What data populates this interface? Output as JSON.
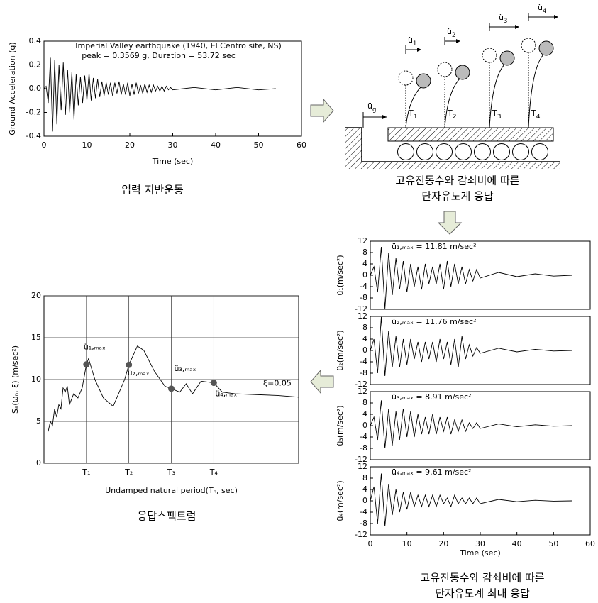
{
  "chart_data": [
    {
      "type": "line",
      "title": "Imperial Valley earthquake (1940, El Centro site, NS)",
      "subtitle": "peak = 0.3569 g, Duration = 53.72 sec",
      "x_label": "Time (sec)",
      "y_label": "Ground Acceleration (g)",
      "color": "#000000",
      "xlim": [
        0,
        60
      ],
      "xticks": [
        0,
        10,
        20,
        30,
        40,
        50,
        60
      ],
      "ylim": [
        -0.4,
        0.4
      ],
      "yticks": [
        -0.4,
        -0.2,
        {
          "value": 0,
          "label": "0.0"
        },
        0.2,
        0.4
      ],
      "x": [
        0,
        0.5,
        1,
        1.5,
        2,
        2.5,
        3,
        3.5,
        4,
        4.5,
        5,
        5.5,
        6,
        6.5,
        7,
        7.5,
        8,
        8.5,
        9,
        9.5,
        10,
        10.5,
        11,
        11.5,
        12,
        12.5,
        13,
        13.5,
        14,
        14.5,
        15,
        15.5,
        16,
        16.5,
        17,
        17.5,
        18,
        18.5,
        19,
        19.5,
        20,
        20.5,
        21,
        21.5,
        22,
        22.5,
        23,
        23.5,
        24,
        24.5,
        25,
        25.5,
        26,
        26.5,
        27,
        27.5,
        28,
        28.5,
        29,
        29.5,
        30,
        35,
        40,
        45,
        50,
        54
      ],
      "values": [
        0,
        0.02,
        -0.12,
        0.26,
        -0.36,
        0.24,
        -0.3,
        0.2,
        -0.18,
        0.22,
        -0.22,
        0.16,
        -0.2,
        0.14,
        -0.26,
        0.12,
        -0.14,
        0.1,
        -0.12,
        0.11,
        -0.1,
        0.13,
        -0.1,
        0.09,
        -0.08,
        0.08,
        -0.07,
        0.06,
        -0.06,
        0.05,
        -0.05,
        0.05,
        -0.06,
        0.05,
        -0.04,
        0.06,
        -0.05,
        0.04,
        -0.05,
        0.05,
        -0.06,
        0.04,
        -0.05,
        0.05,
        -0.04,
        0.03,
        -0.04,
        0.04,
        -0.03,
        0.03,
        -0.03,
        0.03,
        -0.02,
        0.02,
        -0.02,
        0.02,
        -0.02,
        0.02,
        -0.01,
        0.01,
        -0.01,
        0.01,
        -0.01,
        0.01,
        -0.01,
        0
      ]
    },
    {
      "type": "line",
      "x_label": "Undamped natural period(Tₙ, sec)",
      "y_label": "Sₐ(ωₙ, ξ) (m/sec²)",
      "color": "#000000",
      "grid": true,
      "xlim": [
        0,
        6
      ],
      "xticks": [
        {
          "value": 1,
          "label": "T₁"
        },
        {
          "value": 2,
          "label": "T₂"
        },
        {
          "value": 3,
          "label": "T₃"
        },
        {
          "value": 4,
          "label": "T₄"
        }
      ],
      "ylim": [
        0,
        20
      ],
      "yticks": [
        0,
        5,
        10,
        15,
        20
      ],
      "x": [
        0.1,
        0.15,
        0.2,
        0.25,
        0.3,
        0.35,
        0.4,
        0.45,
        0.5,
        0.55,
        0.6,
        0.7,
        0.8,
        0.9,
        1.0,
        1.05,
        1.2,
        1.4,
        1.63,
        1.9,
        2.0,
        2.2,
        2.35,
        2.6,
        2.85,
        3.0,
        3.2,
        3.35,
        3.5,
        3.7,
        4.0,
        4.2,
        4.5,
        5.0,
        5.5,
        6.0
      ],
      "values": [
        3.8,
        5,
        4.5,
        6.5,
        5.5,
        7,
        6.5,
        9,
        8.5,
        9.2,
        7,
        8.3,
        7.8,
        9,
        11.81,
        12.5,
        10,
        7.8,
        6.8,
        10,
        11.76,
        14,
        13.5,
        11,
        9.2,
        8.91,
        8.5,
        9.5,
        8.3,
        9.8,
        9.61,
        8.5,
        8.3,
        8.2,
        8.1,
        7.9
      ],
      "markers": {
        "x": [
          1,
          2,
          3,
          4
        ],
        "values": [
          11.81,
          11.76,
          8.91,
          9.61
        ],
        "labels": [
          "ü₁,ₘₐₓ",
          "ü₂,ₘₐₓ",
          "ü₃,ₘₐₓ",
          "ü₄,ₘₐₓ"
        ],
        "color": "#555555"
      },
      "annotation": "ξ=0.05"
    },
    {
      "type": "line",
      "annotation": "ü₁,ₘₐₓ = 11.81 m/sec²",
      "y_label": "ü₁(m/sec²)",
      "color": "#000000",
      "xlim": [
        0,
        60
      ],
      "ylim": [
        -12,
        12
      ],
      "yticks": [
        -12,
        -8,
        -4,
        0,
        4,
        8,
        12
      ],
      "x": [
        0,
        1,
        2,
        3,
        4,
        5,
        6,
        7,
        8,
        9,
        10,
        11,
        12,
        13,
        14,
        15,
        16,
        17,
        18,
        19,
        20,
        21,
        22,
        23,
        24,
        25,
        26,
        27,
        28,
        29,
        30,
        35,
        40,
        45,
        50,
        55
      ],
      "values": [
        0,
        3,
        -6,
        10,
        -11.81,
        8,
        -7,
        6,
        -5,
        5,
        -6,
        4,
        -4,
        3,
        -5,
        4,
        -3,
        3,
        -3,
        4,
        -5,
        5,
        -4,
        4,
        -3,
        3,
        -3,
        2,
        -2,
        2,
        -1,
        1,
        -0.5,
        0.5,
        -0.3,
        0
      ]
    },
    {
      "type": "line",
      "annotation": "ü₂,ₘₐₓ = 11.76 m/sec²",
      "y_label": "ü₂(m/sec²)",
      "color": "#000000",
      "xlim": [
        0,
        60
      ],
      "ylim": [
        -12,
        12
      ],
      "yticks": [
        -12,
        -8,
        -4,
        0,
        4,
        8,
        12
      ],
      "x": [
        0,
        1,
        2,
        3,
        4,
        5,
        6,
        7,
        8,
        9,
        10,
        11,
        12,
        13,
        14,
        15,
        16,
        17,
        18,
        19,
        20,
        21,
        22,
        23,
        24,
        25,
        26,
        27,
        28,
        29,
        30,
        35,
        40,
        45,
        50,
        55
      ],
      "values": [
        0,
        4,
        -8,
        11.76,
        -9,
        7,
        -6,
        5,
        -6,
        4,
        -5,
        4,
        -3,
        3,
        -4,
        3,
        -3,
        3,
        -4,
        4,
        -3,
        3,
        -5,
        4,
        -6,
        5,
        -3,
        2,
        -2,
        1,
        -1,
        0.8,
        -0.5,
        0.4,
        -0.2,
        0
      ]
    },
    {
      "type": "line",
      "annotation": "ü₃,ₘₐₓ = 8.91 m/sec²",
      "y_label": "ü₃(m/sec²)",
      "color": "#000000",
      "xlim": [
        0,
        60
      ],
      "ylim": [
        -12,
        12
      ],
      "yticks": [
        -12,
        -8,
        -4,
        0,
        4,
        8,
        12
      ],
      "x": [
        0,
        1,
        2,
        3,
        4,
        5,
        6,
        7,
        8,
        9,
        10,
        11,
        12,
        13,
        14,
        15,
        16,
        17,
        18,
        19,
        20,
        21,
        22,
        23,
        24,
        25,
        26,
        27,
        28,
        29,
        30,
        35,
        40,
        45,
        50,
        55
      ],
      "values": [
        0,
        3,
        -5,
        8.91,
        -8,
        6,
        -7,
        5,
        -5,
        6,
        -4,
        5,
        -4,
        4,
        -3,
        3,
        -3,
        4,
        -3,
        3,
        -2,
        3,
        -3,
        2,
        -2,
        2,
        -2,
        1,
        -1,
        1,
        -1,
        0.6,
        -0.4,
        0.3,
        -0.2,
        0
      ]
    },
    {
      "type": "line",
      "annotation": "ü₄,ₘₐₓ = 9.61 m/sec²",
      "y_label": "ü₄(m/sec²)",
      "x_label": "Time (sec)",
      "color": "#000000",
      "xlim": [
        0,
        60
      ],
      "xticks": [
        0,
        10,
        20,
        30,
        40,
        50,
        60
      ],
      "ylim": [
        -12,
        12
      ],
      "yticks": [
        -12,
        -8,
        -4,
        0,
        4,
        8,
        12
      ],
      "x": [
        0,
        1,
        2,
        3,
        4,
        5,
        6,
        7,
        8,
        9,
        10,
        11,
        12,
        13,
        14,
        15,
        16,
        17,
        18,
        19,
        20,
        21,
        22,
        23,
        24,
        25,
        26,
        27,
        28,
        29,
        30,
        35,
        40,
        45,
        50,
        55
      ],
      "values": [
        0,
        5,
        -8,
        9.61,
        -9,
        6,
        -5,
        4,
        -4,
        3,
        -3,
        3,
        -2,
        2,
        -2,
        2,
        -2,
        2,
        -2,
        2,
        -1,
        1,
        -2,
        2,
        -1,
        1,
        -1,
        1,
        -1,
        1,
        -1,
        0.5,
        -0.3,
        0.2,
        -0.1,
        0
      ]
    }
  ],
  "diagram": {
    "ground": {
      "symbol": "ü",
      "sub": "g"
    },
    "responses": [
      {
        "symbol": "ü",
        "sub": "1"
      },
      {
        "symbol": "ü",
        "sub": "2"
      },
      {
        "symbol": "ü",
        "sub": "3"
      },
      {
        "symbol": "ü",
        "sub": "4"
      }
    ],
    "periods": [
      {
        "symbol": "T",
        "sub": "1"
      },
      {
        "symbol": "T",
        "sub": "2"
      },
      {
        "symbol": "T",
        "sub": "3"
      },
      {
        "symbol": "T",
        "sub": "4"
      }
    ]
  },
  "captions": {
    "ground_motion": "입력 지반운동",
    "sdof_response": [
      "고유진동수와 감쇠비에 따른",
      "단자유도계 응답"
    ],
    "max_response": [
      "고유진동수와 감쇠비에 따른",
      "단자유도계 최대 응답"
    ],
    "spectrum": "응답스펙트럼"
  }
}
